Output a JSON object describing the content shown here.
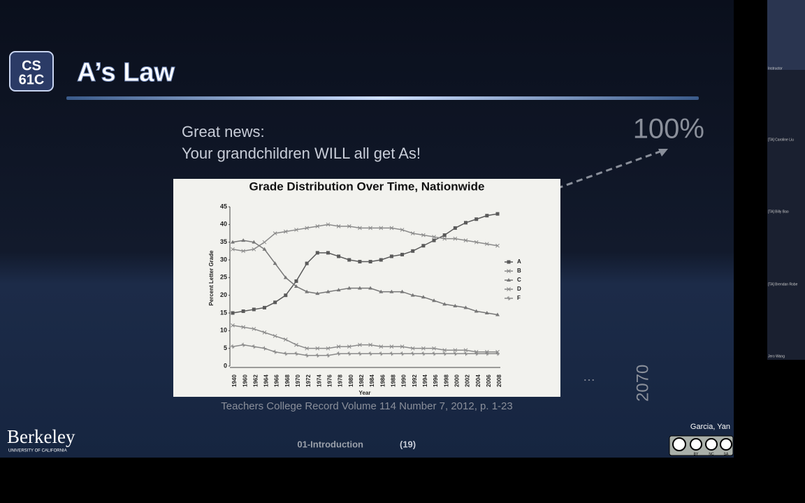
{
  "slide": {
    "logo": [
      "CS",
      "61C"
    ],
    "title": "A’s Law",
    "text": [
      "Great news:",
      "Your grandchildren WILL all get As!"
    ],
    "projection": "100%",
    "ellipsis": "…",
    "future_year": "2070",
    "citation": "Teachers College Record Volume 114 Number 7, 2012, p. 1-23",
    "footer": {
      "university": "Berkeley",
      "university_sub": "UNIVERSITY OF CALIFORNIA",
      "lecture": "01-Introduction",
      "page": "(19)",
      "authors": "Garcia, Yan",
      "license": [
        "BY",
        "NC",
        "SA"
      ]
    },
    "chart": {
      "type": "line",
      "title": "Grade Distribution Over Time, Nationwide",
      "x_label": "Year",
      "y_label": "Percent Letter Grade",
      "categories": [
        "1940",
        "1960",
        "1962",
        "1964",
        "1966",
        "1968",
        "1970",
        "1972",
        "1974",
        "1976",
        "1978",
        "1980",
        "1982",
        "1984",
        "1986",
        "1988",
        "1990",
        "1992",
        "1994",
        "1996",
        "1998",
        "2000",
        "2002",
        "2004",
        "2006",
        "2008"
      ],
      "ylim": [
        0,
        45
      ],
      "yticks": [
        0,
        5,
        10,
        15,
        20,
        25,
        30,
        35,
        40,
        45
      ],
      "series": [
        {
          "name": "A",
          "color": "#5a5a5a",
          "marker": "square",
          "values": [
            15,
            15.5,
            16,
            16.5,
            18,
            20,
            24,
            29,
            32,
            32,
            31,
            30,
            29.5,
            29.5,
            30,
            31,
            31.5,
            32.5,
            34,
            35.5,
            37,
            39,
            40.5,
            41.5,
            42.5,
            43
          ]
        },
        {
          "name": "B",
          "color": "#8a8a8a",
          "marker": "x",
          "values": [
            33,
            32.5,
            33,
            35,
            37.5,
            38,
            38.5,
            39,
            39.5,
            40,
            39.5,
            39.5,
            39,
            39,
            39,
            39,
            38.5,
            37.5,
            37,
            36.5,
            36,
            36,
            35.5,
            35,
            34.5,
            34
          ]
        },
        {
          "name": "C",
          "color": "#777777",
          "marker": "triangle",
          "values": [
            35,
            35.5,
            35,
            33,
            29,
            25,
            22.5,
            21,
            20.5,
            21,
            21.5,
            22,
            22,
            22,
            21,
            21,
            21,
            20,
            19.5,
            18.5,
            17.5,
            17,
            16.5,
            15.5,
            15,
            14.5
          ]
        },
        {
          "name": "D",
          "color": "#8a8a8a",
          "marker": "x",
          "values": [
            11.5,
            11,
            10.5,
            9.5,
            8.5,
            7.5,
            6,
            5,
            5,
            5,
            5.5,
            5.5,
            6,
            6,
            5.5,
            5.5,
            5.5,
            5,
            5,
            5,
            4.5,
            4.5,
            4.5,
            4,
            4,
            4
          ]
        },
        {
          "name": "F",
          "color": "#8a8a8a",
          "marker": "star",
          "values": [
            5.5,
            6,
            5.5,
            5,
            4,
            3.5,
            3.5,
            3,
            3,
            3,
            3.5,
            3.5,
            3.5,
            3.5,
            3.5,
            3.5,
            3.5,
            3.5,
            3.5,
            3.5,
            3.5,
            3.5,
            3.5,
            3.5,
            3.5,
            3.5
          ]
        }
      ]
    }
  },
  "participants": [
    "Instructor",
    "[TA] Caroline Liu",
    "[TA] Billy Bao",
    "[TA] Brendan Robe",
    "Jero Wang"
  ]
}
